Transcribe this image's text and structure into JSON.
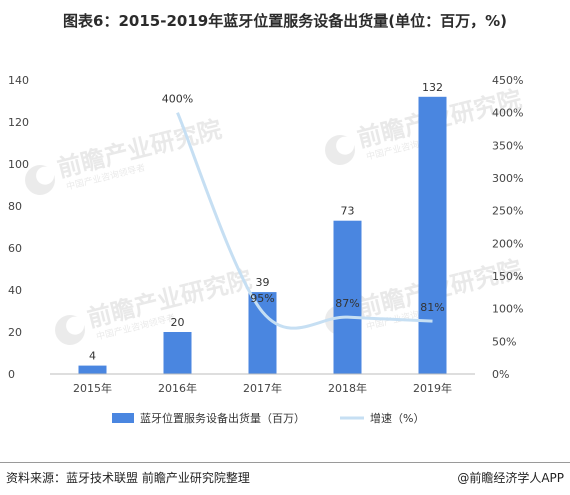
{
  "title": "图表6：2015-2019年蓝牙位置服务设备出货量(单位：百万，%)",
  "footer": {
    "source": "资料来源：蓝牙技术联盟 前瞻产业研究院整理",
    "credit": "@前瞻经济学人APP"
  },
  "watermark": {
    "text": "前瞻产业研究院",
    "subtext": "中国产业咨询领导者"
  },
  "colors": {
    "bar": "#4A86E0",
    "line": "#C6DFF3"
  },
  "chart_data": {
    "type": "bar",
    "categories": [
      "2015年",
      "2016年",
      "2017年",
      "2018年",
      "2019年"
    ],
    "series": [
      {
        "name": "蓝牙位置服务设备出货量（百万）",
        "axis": "left",
        "values": [
          4,
          20,
          39,
          73,
          132
        ],
        "labels": [
          "4",
          "20",
          "39",
          "73",
          "132"
        ]
      },
      {
        "name": "增速（%）",
        "axis": "right",
        "type": "line",
        "values": [
          null,
          400,
          95,
          87,
          81
        ],
        "labels": [
          "",
          "400%",
          "95%",
          "87%",
          "81%"
        ]
      }
    ],
    "ylim_left": [
      0,
      140
    ],
    "yticks_left": [
      "0",
      "20",
      "40",
      "60",
      "80",
      "100",
      "120",
      "140"
    ],
    "ylim_right": [
      0,
      450
    ],
    "yticks_right": [
      "0%",
      "50%",
      "100%",
      "150%",
      "200%",
      "250%",
      "300%",
      "350%",
      "400%",
      "450%"
    ],
    "grid": false,
    "legend": "bottom"
  }
}
